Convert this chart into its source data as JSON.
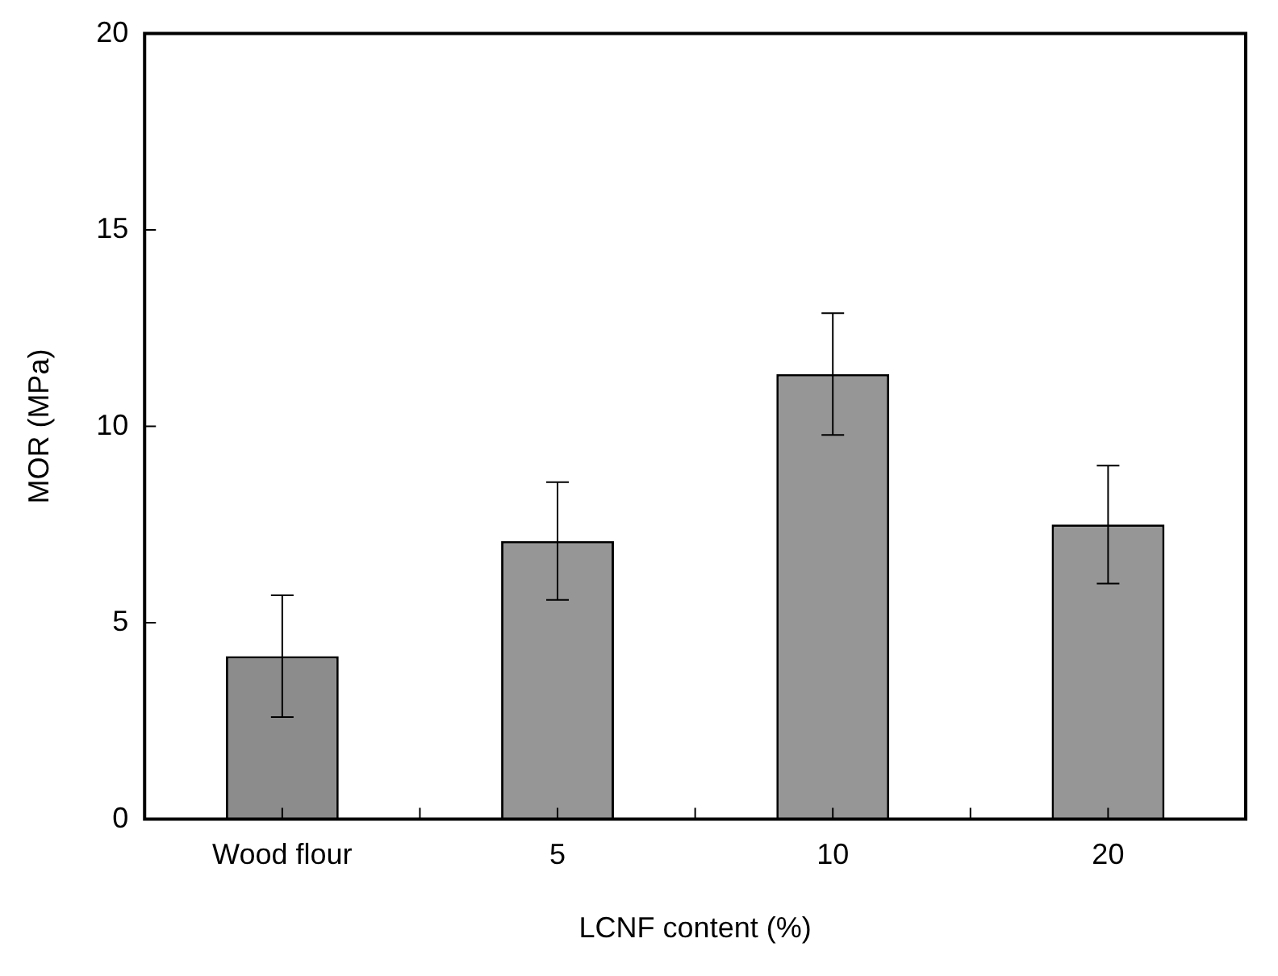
{
  "chart_data": {
    "type": "bar",
    "xlabel": "LCNF content (%)",
    "ylabel": "MOR (MPa)",
    "categories": [
      "Wood flour",
      "5",
      "10",
      "20"
    ],
    "values": [
      4.15,
      7.08,
      11.33,
      7.5
    ],
    "errors": [
      1.55,
      1.5,
      1.55,
      1.5
    ],
    "colors": [
      "#8c8c8c",
      "#969696",
      "#969696",
      "#969696"
    ],
    "ylim": [
      0,
      20
    ],
    "yticks": [
      0,
      5,
      10,
      15,
      20
    ],
    "grid": false,
    "legend": false
  }
}
